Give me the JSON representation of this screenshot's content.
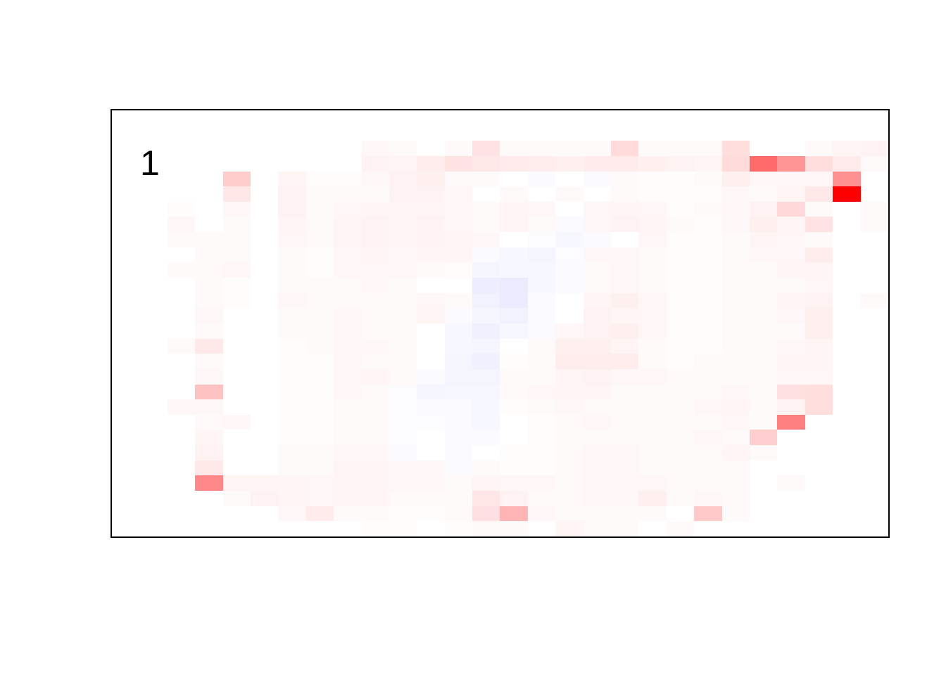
{
  "chart_data": {
    "type": "heatmap",
    "panel_label": "1",
    "n_rows": 28,
    "n_cols": 28,
    "grid_lines": false,
    "border_color": "#000000",
    "background_color": "#ffffff",
    "value_range": [
      -0.1,
      1.0
    ],
    "colormap": {
      "zero": "#FFFFFF",
      "positive_max": "#FF0000",
      "negative": "#0000FF"
    },
    "max_cell": {
      "row": 5,
      "col": 26,
      "value": 1.0
    },
    "values": [
      [
        0,
        0,
        0,
        0,
        0,
        0,
        0,
        0,
        0,
        0,
        0,
        0,
        0,
        0,
        0,
        0,
        0,
        0,
        0,
        0,
        0,
        0,
        0,
        0,
        0,
        0,
        0,
        0
      ],
      [
        0,
        0,
        0,
        0,
        0,
        0,
        0,
        0,
        0,
        0,
        0,
        0,
        0,
        0,
        0,
        0,
        0,
        0,
        0,
        0,
        0,
        0,
        0,
        0,
        0,
        0,
        0,
        0
      ],
      [
        0,
        0,
        0,
        0,
        0,
        0,
        0,
        0,
        0,
        0.03,
        0.02,
        0,
        0.02,
        0.11,
        0.02,
        0.02,
        0.02,
        0.02,
        0.14,
        0.02,
        0.02,
        0.02,
        0.13,
        0,
        0,
        0.02,
        0.04,
        0.05
      ],
      [
        0,
        0,
        0,
        0,
        0,
        0,
        0,
        0,
        0,
        0.05,
        0.04,
        0.07,
        0.11,
        0.09,
        0.08,
        0.07,
        0.06,
        0.08,
        0.08,
        0.06,
        0.05,
        0.04,
        0.14,
        0.58,
        0.42,
        0.13,
        0.08,
        0.02
      ],
      [
        0,
        0,
        0,
        0,
        0.2,
        0,
        0.04,
        0.01,
        0.01,
        0.03,
        0.05,
        0.06,
        0.02,
        0.02,
        0,
        -0.02,
        0,
        -0.02,
        0.02,
        0.01,
        0.01,
        0.02,
        0.06,
        0.03,
        0.03,
        0.03,
        0.43,
        0
      ],
      [
        0,
        0,
        0,
        0,
        0.095,
        0,
        0.05,
        0.02,
        0.02,
        0.02,
        0.05,
        0.05,
        0.03,
        0,
        0.02,
        0,
        0.02,
        0,
        0.02,
        0.01,
        0.01,
        0.01,
        0.03,
        0.02,
        0.04,
        0.09,
        1.0,
        0
      ],
      [
        0,
        0,
        0.01,
        0,
        0.03,
        0,
        0.05,
        0.02,
        0.03,
        0.04,
        0.04,
        0.04,
        0.03,
        0.02,
        0.04,
        0.03,
        0,
        0.03,
        0.04,
        0.03,
        0.01,
        0.02,
        0.03,
        0.05,
        0.15,
        0.02,
        0,
        0.02
      ],
      [
        0,
        0,
        0.03,
        0,
        0.02,
        0,
        0.04,
        0.02,
        0.04,
        0.05,
        0.04,
        0.05,
        0.03,
        0.02,
        0.04,
        0.02,
        -0.02,
        0.03,
        0.05,
        0.04,
        0.02,
        0.01,
        0.03,
        0.06,
        0.04,
        0.11,
        0,
        0.02
      ],
      [
        0,
        0,
        0.02,
        0.02,
        0.02,
        0,
        0.03,
        0.02,
        0.04,
        0.05,
        0.04,
        0.05,
        0.04,
        0.03,
        0,
        -0.01,
        -0.03,
        -0.02,
        0,
        0.03,
        0.01,
        0.01,
        0.02,
        0.04,
        0.03,
        0.02,
        0,
        0
      ],
      [
        0,
        0,
        0,
        0.02,
        0.02,
        0,
        0.02,
        0.01,
        0.03,
        0.04,
        0.03,
        0.04,
        0.04,
        -0.02,
        -0.03,
        -0.04,
        -0.01,
        0.03,
        0.03,
        0.02,
        0.01,
        0.01,
        0.02,
        0.03,
        0.03,
        0.07,
        0,
        0
      ],
      [
        0,
        0,
        0.02,
        0.02,
        0.03,
        0,
        0.02,
        0.01,
        0.03,
        0.03,
        0.03,
        0.02,
        0.015,
        -0.04,
        -0.03,
        -0.03,
        -0.02,
        0.02,
        0.03,
        0.02,
        0.01,
        0.01,
        0.02,
        0.02,
        0.04,
        0.04,
        0,
        0
      ],
      [
        0,
        0,
        0,
        0.02,
        0.01,
        0,
        0.02,
        0.02,
        0.02,
        0.03,
        0.02,
        0,
        0,
        -0.07,
        -0.08,
        -0.03,
        -0.02,
        0.02,
        0.03,
        0.02,
        0.01,
        0.01,
        0.02,
        0.02,
        0.02,
        0.03,
        0,
        0
      ],
      [
        0,
        0,
        0,
        0.02,
        0.01,
        0,
        0.03,
        0.02,
        0.02,
        0.02,
        0.02,
        0.03,
        0.02,
        -0.05,
        -0.08,
        -0.02,
        0,
        0.04,
        0.06,
        0.03,
        0.01,
        0.01,
        0.02,
        0.02,
        0.04,
        0.05,
        0,
        0.02
      ],
      [
        0,
        0,
        0,
        0.03,
        0,
        0,
        0.02,
        0.02,
        0.03,
        0.02,
        0.02,
        0.04,
        -0.02,
        -0.04,
        -0.05,
        -0.02,
        0,
        0.05,
        0.04,
        0.03,
        0.01,
        0.01,
        0.02,
        0.02,
        0.03,
        0.06,
        0,
        0
      ],
      [
        0,
        0,
        0,
        0.02,
        0,
        0,
        0.02,
        0.02,
        0.03,
        0.02,
        0.02,
        0,
        -0.03,
        -0.06,
        -0.03,
        -0.02,
        0.03,
        0.05,
        0.06,
        0.03,
        0.01,
        0.01,
        0.02,
        0.02,
        0.02,
        0.06,
        0,
        0
      ],
      [
        0,
        0,
        0.02,
        0.09,
        0,
        0,
        0.01,
        0.02,
        0.03,
        0.03,
        0.02,
        0,
        -0.03,
        -0.04,
        0,
        0.02,
        0.06,
        0.06,
        0.04,
        0.02,
        0.01,
        0.01,
        0.02,
        0.02,
        0.03,
        0.04,
        0,
        0
      ],
      [
        0,
        0,
        0,
        0.02,
        0,
        0,
        0.01,
        0.01,
        0.03,
        0.02,
        0.02,
        0,
        -0.04,
        -0.06,
        0.01,
        0.02,
        0.07,
        0.07,
        0.07,
        0.02,
        0.01,
        0.02,
        0.02,
        0.02,
        0.04,
        0.04,
        0,
        0
      ],
      [
        0,
        0,
        0,
        0.03,
        0,
        0,
        0.01,
        0.01,
        0.03,
        0.04,
        0.02,
        -0.02,
        -0.04,
        -0.04,
        0.02,
        0.02,
        0.04,
        0.05,
        0.03,
        0.03,
        0.02,
        0.02,
        0.02,
        0.02,
        0.03,
        0.03,
        0,
        0
      ],
      [
        0,
        0,
        0,
        0.24,
        0,
        0,
        0.01,
        0.01,
        0.03,
        0.02,
        -0.01,
        -0.04,
        -0.03,
        -0.03,
        0.02,
        0.03,
        0.04,
        0.04,
        0.02,
        0.02,
        0.02,
        0.02,
        0.03,
        0.02,
        0.12,
        0.13,
        0,
        0
      ],
      [
        0,
        0,
        0.03,
        0.03,
        0,
        0,
        0.01,
        0.01,
        0.02,
        0.02,
        -0.01,
        -0.02,
        -0.02,
        -0.03,
        0.01,
        0.02,
        0.03,
        0.02,
        0.02,
        0.02,
        0.02,
        0.03,
        0.04,
        0.02,
        0.05,
        0.13,
        0,
        0
      ],
      [
        0,
        0,
        0,
        0.02,
        0.03,
        0,
        0.01,
        0.01,
        0.02,
        0.02,
        -0.01,
        -0.01,
        -0.02,
        -0.03,
        0,
        0.01,
        0.02,
        0.03,
        0.02,
        0.02,
        0.02,
        0.02,
        0.03,
        0.02,
        0.5,
        0,
        0,
        0
      ],
      [
        0,
        0,
        0,
        0.04,
        0,
        0,
        0.01,
        0.01,
        0.02,
        0.02,
        -0.01,
        0,
        -0.02,
        -0.02,
        0,
        0.01,
        0.02,
        0.02,
        0.02,
        0.02,
        0.02,
        0.03,
        0.02,
        0.19,
        0,
        0,
        0,
        0
      ],
      [
        0,
        0,
        0,
        0.05,
        0,
        0,
        0.02,
        0.02,
        0.03,
        0.03,
        -0.02,
        0,
        -0.02,
        0,
        0.01,
        0.01,
        0.02,
        0.03,
        0.03,
        0.02,
        0.02,
        0.02,
        0.04,
        0.02,
        0,
        0,
        0,
        0
      ],
      [
        0,
        0,
        0,
        0.09,
        0,
        0,
        0.02,
        0.02,
        0.04,
        0.04,
        0.03,
        0.03,
        -0.02,
        0.02,
        0.01,
        0.01,
        0.02,
        0.03,
        0.03,
        0.02,
        0.02,
        0.02,
        0.02,
        0,
        0,
        0,
        0,
        0
      ],
      [
        0,
        0,
        0,
        0.47,
        0.04,
        0.04,
        0.04,
        0.03,
        0.04,
        0.04,
        0.03,
        0.03,
        0.02,
        0.04,
        0.03,
        0.03,
        0.02,
        0.03,
        0.03,
        0.03,
        0.02,
        0.02,
        0.02,
        0,
        0.02,
        0,
        0,
        0
      ],
      [
        0,
        0,
        0,
        0,
        0.02,
        0.05,
        0.04,
        0.03,
        0.04,
        0.04,
        0.02,
        0.02,
        0.02,
        0.1,
        0.05,
        0.02,
        0.02,
        0.03,
        0.03,
        0.06,
        0.02,
        0.03,
        0.02,
        0,
        0,
        0,
        0,
        0
      ],
      [
        0,
        0,
        0,
        0,
        0,
        0,
        0.03,
        0.08,
        0.02,
        0.02,
        0.01,
        0.01,
        0.02,
        0.12,
        0.29,
        0.03,
        0.02,
        0.02,
        0.02,
        0.02,
        0,
        0.21,
        0.02,
        0,
        0,
        0,
        0,
        0
      ],
      [
        0,
        0,
        0,
        0,
        0,
        0,
        0,
        0,
        0,
        0.01,
        0.01,
        0,
        0.01,
        0.02,
        0.02,
        0,
        0.04,
        0.02,
        0.02,
        0,
        0.02,
        0,
        0,
        0,
        0,
        0,
        0,
        0
      ]
    ]
  }
}
